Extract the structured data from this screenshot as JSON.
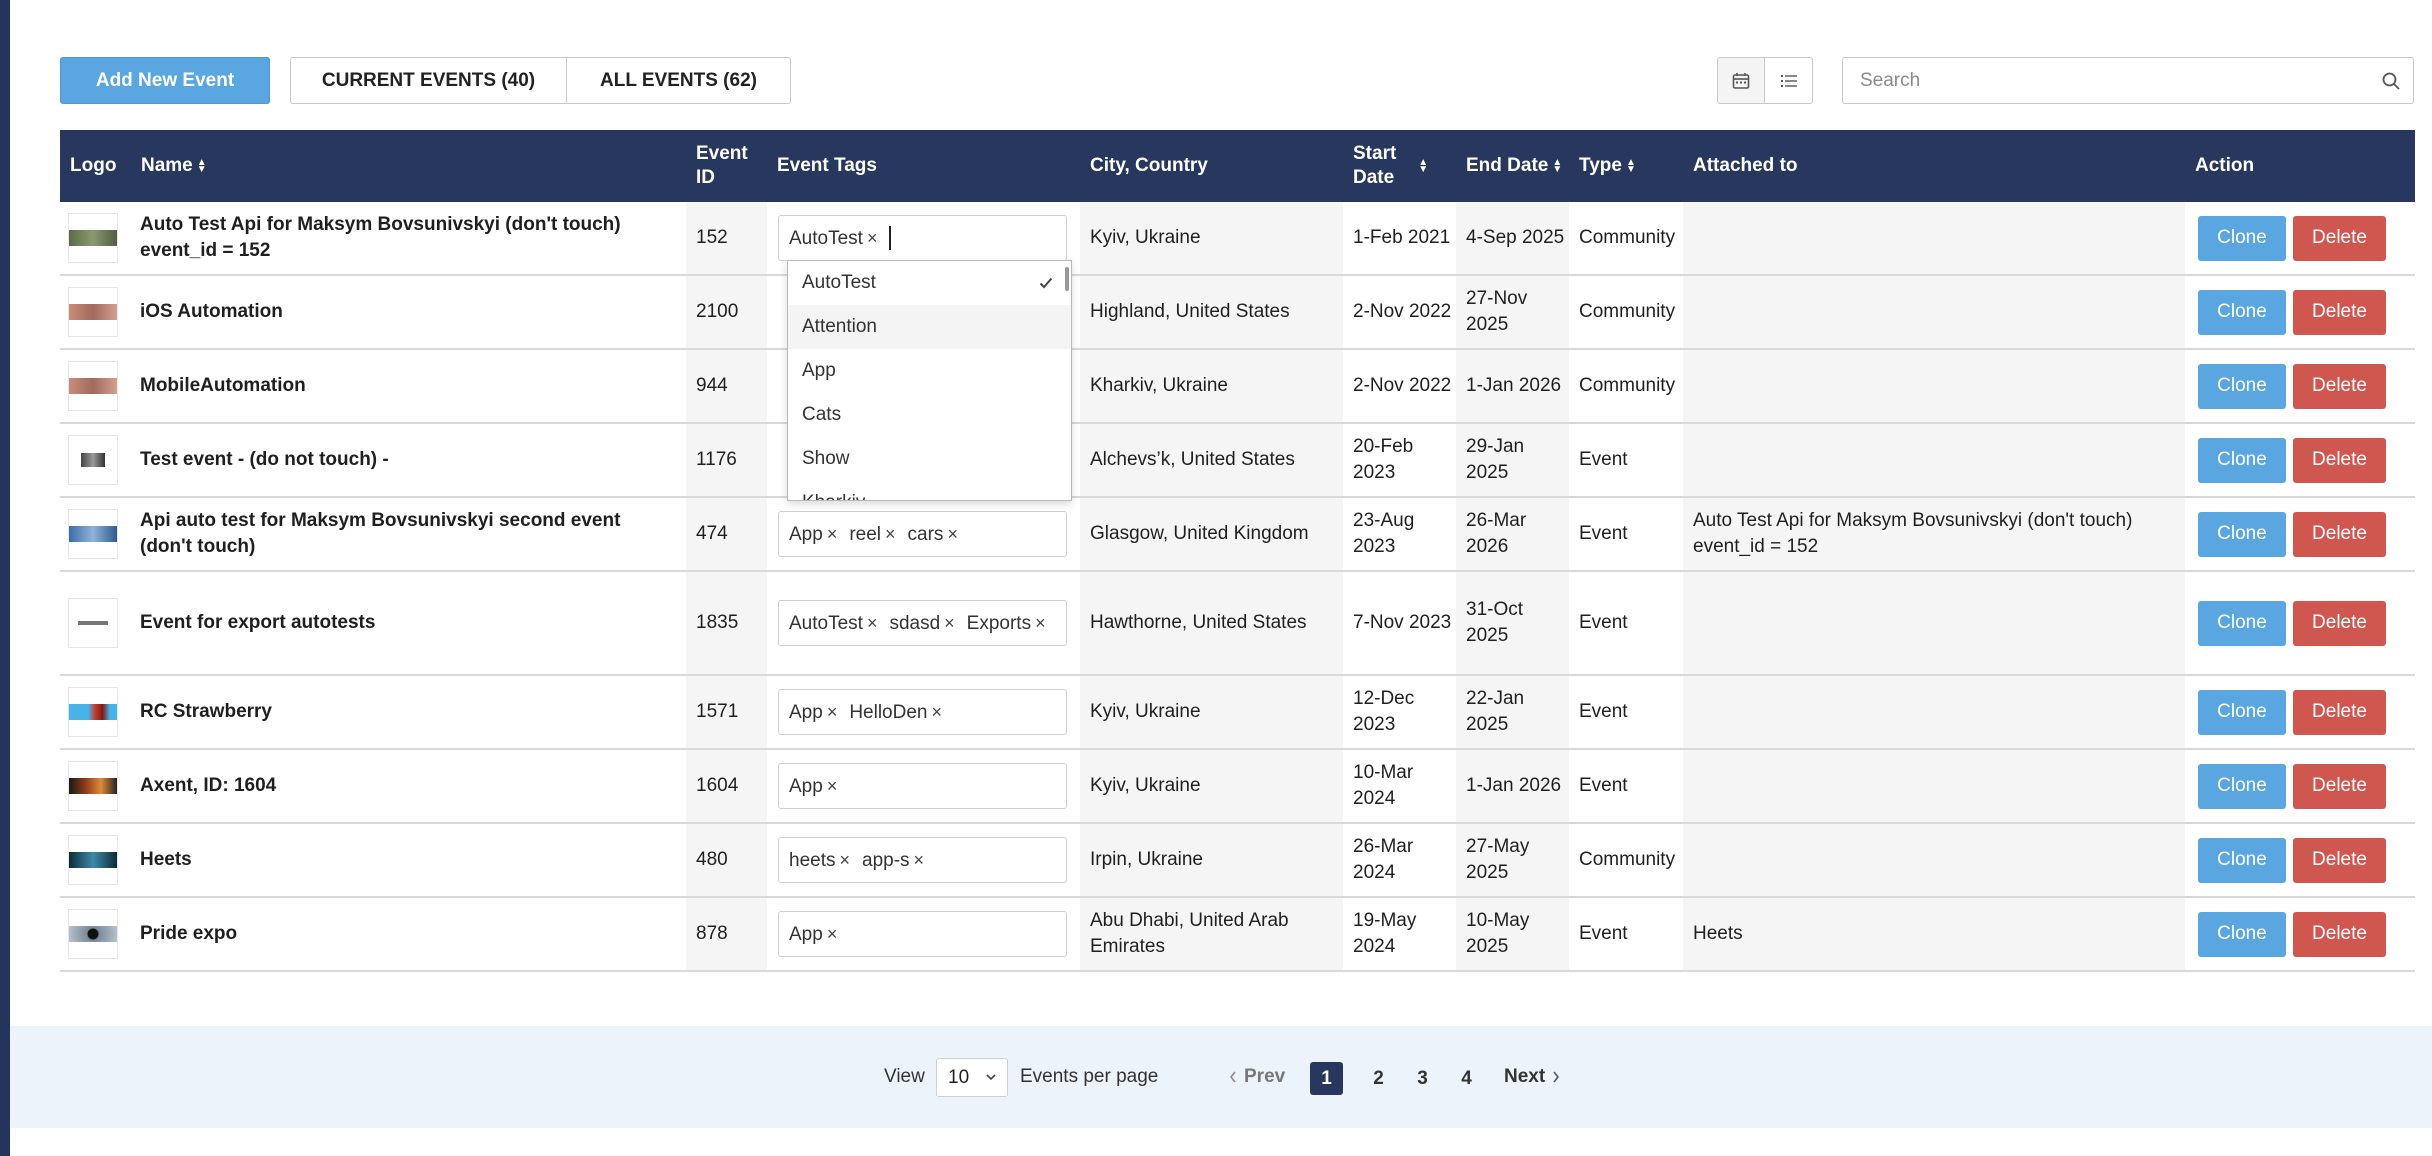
{
  "toolbar": {
    "add_label": "Add New Event",
    "tab_current": "CURRENT EVENTS (40)",
    "tab_all": "ALL EVENTS (62)",
    "search_placeholder": "Search"
  },
  "columns": {
    "logo": "Logo",
    "name": "Name",
    "event_id_1": "Event",
    "event_id_2": "ID",
    "tags": "Event Tags",
    "city": "City, Country",
    "start_1": "Start",
    "start_2": "Date",
    "end": "End Date",
    "type": "Type",
    "attached": "Attached to",
    "action": "Action"
  },
  "buttons": {
    "clone": "Clone",
    "delete": "Delete"
  },
  "rows": [
    {
      "name": "Auto Test Api for Maksym Bovsunivskyi (don't touch) event_id = 152",
      "id": "152",
      "tags": [
        "AutoTest"
      ],
      "city": "Kyiv, Ukraine",
      "start": "1-Feb 2021",
      "end": "4-Sep 2025",
      "type": "Community",
      "attached": ""
    },
    {
      "name": "iOS Automation",
      "id": "2100",
      "tags": [],
      "city": "Highland, United States",
      "start": "2-Nov 2022",
      "end": "27-Nov 2025",
      "type": "Community",
      "attached": ""
    },
    {
      "name": "MobileAutomation",
      "id": "944",
      "tags": [],
      "city": "Kharkiv, Ukraine",
      "start": "2-Nov 2022",
      "end": "1-Jan 2026",
      "type": "Community",
      "attached": ""
    },
    {
      "name": "Test event - (do not touch) -",
      "id": "1176",
      "tags": [],
      "city": "Alchevs’k, United States",
      "start": "20-Feb 2023",
      "end": "29-Jan 2025",
      "type": "Event",
      "attached": ""
    },
    {
      "name": "Api auto test for Maksym Bovsunivskyi second event (don't touch)",
      "id": "474",
      "tags": [
        "App",
        "reel",
        "cars"
      ],
      "city": "Glasgow, United Kingdom",
      "start": "23-Aug 2023",
      "end": "26-Mar 2026",
      "type": "Event",
      "attached": "Auto Test Api for Maksym Bovsunivskyi (don't touch) event_id = 152"
    },
    {
      "name": "Event for export autotests",
      "id": "1835",
      "tags": [
        "AutoTest",
        "sdasd",
        "Exports"
      ],
      "city": "Hawthorne, United States",
      "start": "7-Nov 2023",
      "end": "31-Oct 2025",
      "type": "Event",
      "attached": ""
    },
    {
      "name": "RC Strawberry",
      "id": "1571",
      "tags": [
        "App",
        "HelloDen"
      ],
      "city": "Kyiv, Ukraine",
      "start": "12-Dec 2023",
      "end": "22-Jan 2025",
      "type": "Event",
      "attached": ""
    },
    {
      "name": "Axent, ID: 1604",
      "id": "1604",
      "tags": [
        "App"
      ],
      "city": "Kyiv, Ukraine",
      "start": "10-Mar 2024",
      "end": "1-Jan 2026",
      "type": "Event",
      "attached": ""
    },
    {
      "name": "Heets",
      "id": "480",
      "tags": [
        "heets",
        "app-s"
      ],
      "city": "Irpin, Ukraine",
      "start": "26-Mar 2024",
      "end": "27-May 2025",
      "type": "Community",
      "attached": ""
    },
    {
      "name": "Pride expo",
      "id": "878",
      "tags": [
        "App"
      ],
      "city": "Abu Dhabi, United Arab Emirates",
      "start": "19-May 2024",
      "end": "10-May 2025",
      "type": "Event",
      "attached": "Heets"
    }
  ],
  "dropdown": {
    "options": [
      "AutoTest",
      "Attention",
      "App",
      "Cats",
      "Show",
      "Kharkiv"
    ],
    "selected": "AutoTest"
  },
  "pagination": {
    "view_label": "View",
    "per_page_value": "10",
    "per_page_label": "Events per page",
    "prev": "Prev",
    "next": "Next",
    "pages": [
      "1",
      "2",
      "3",
      "4"
    ],
    "current": "1"
  },
  "colors": {
    "header_bg": "#28375e",
    "primary": "#5aa6e0",
    "danger": "#d0574f",
    "footer_bg": "#edf3fa"
  }
}
